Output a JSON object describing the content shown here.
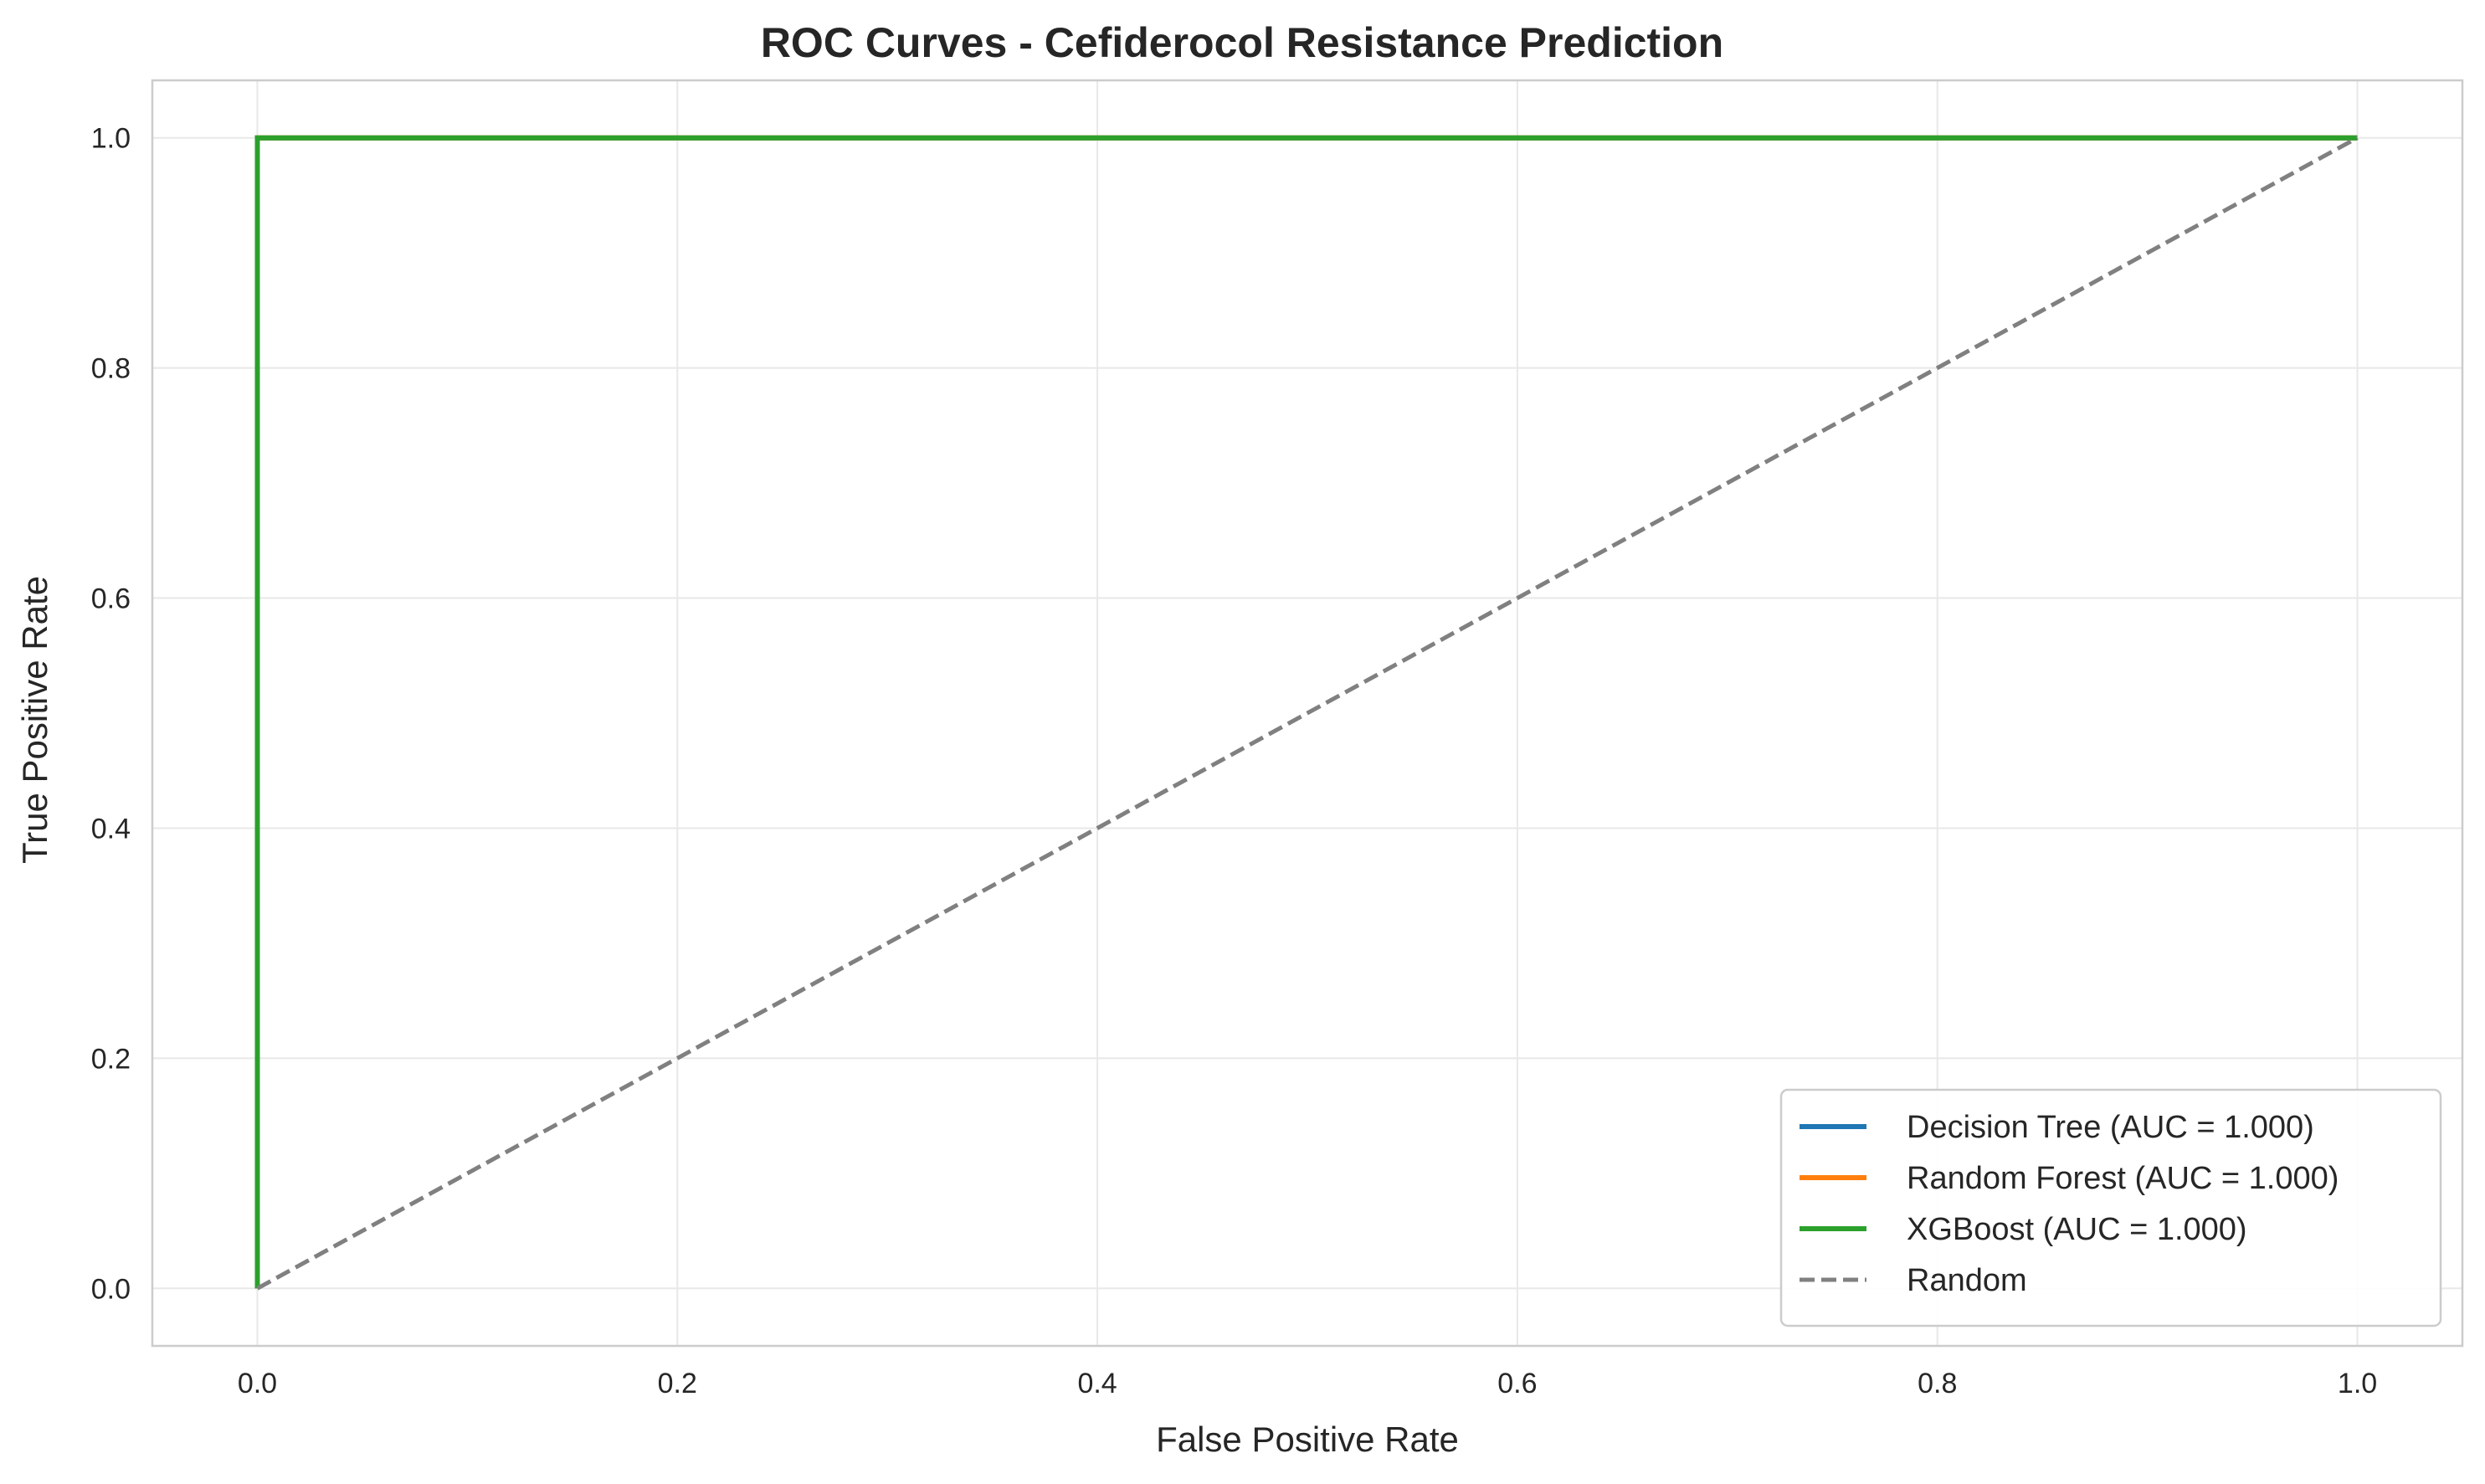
{
  "chart_data": {
    "type": "line",
    "title": "ROC Curves - Cefiderocol Resistance Prediction",
    "xlabel": "False Positive Rate",
    "ylabel": "True Positive Rate",
    "xlim": [
      -0.05,
      1.05
    ],
    "ylim": [
      -0.05,
      1.05
    ],
    "xticks": [
      0.0,
      0.2,
      0.4,
      0.6,
      0.8,
      1.0
    ],
    "yticks": [
      0.0,
      0.2,
      0.4,
      0.6,
      0.8,
      1.0
    ],
    "xtick_labels": [
      "0.0",
      "0.2",
      "0.4",
      "0.6",
      "0.8",
      "1.0"
    ],
    "ytick_labels": [
      "0.0",
      "0.2",
      "0.4",
      "0.6",
      "0.8",
      "1.0"
    ],
    "grid": true,
    "legend_position": "bottom-right",
    "series": [
      {
        "name": "Decision Tree (AUC = 1.000)",
        "color": "#1f77b4",
        "dash": "solid",
        "x": [
          0.0,
          0.0,
          1.0
        ],
        "y": [
          0.0,
          1.0,
          1.0
        ]
      },
      {
        "name": "Random Forest (AUC = 1.000)",
        "color": "#ff7f0e",
        "dash": "solid",
        "x": [
          0.0,
          0.0,
          1.0
        ],
        "y": [
          0.0,
          1.0,
          1.0
        ]
      },
      {
        "name": "XGBoost (AUC = 1.000)",
        "color": "#2ca02c",
        "dash": "solid",
        "x": [
          0.0,
          0.0,
          1.0
        ],
        "y": [
          0.0,
          1.0,
          1.0
        ]
      },
      {
        "name": "Random",
        "color": "#808080",
        "dash": "dashed",
        "x": [
          0.0,
          1.0
        ],
        "y": [
          0.0,
          1.0
        ]
      }
    ]
  }
}
